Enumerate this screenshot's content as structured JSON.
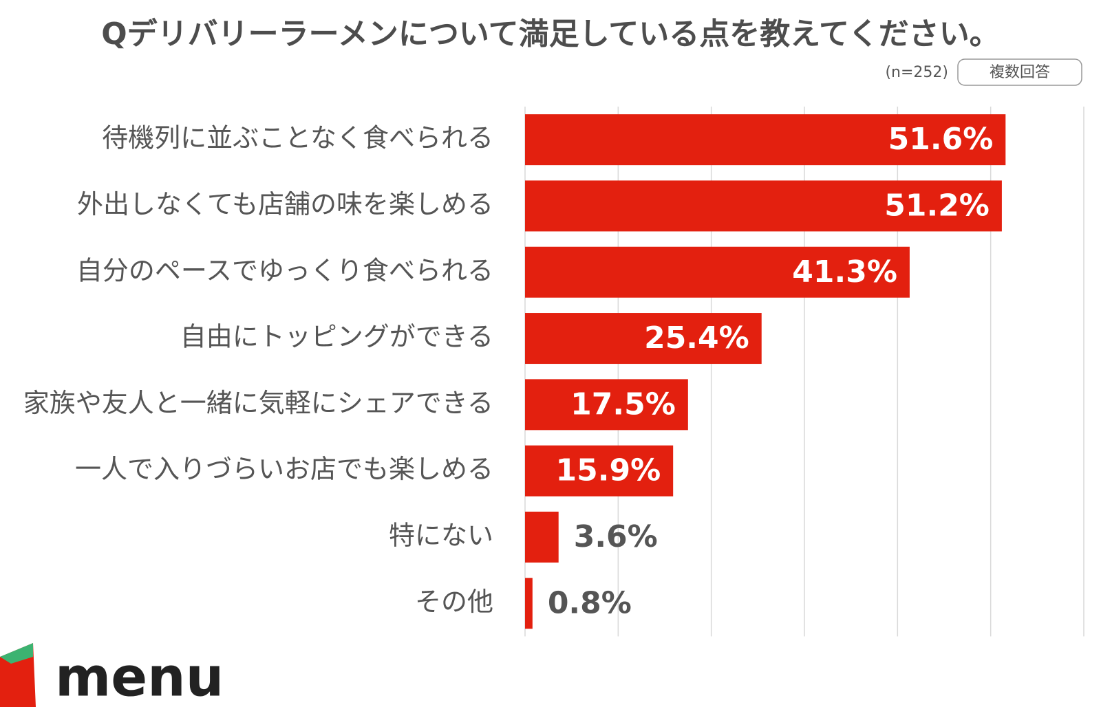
{
  "chart_data": {
    "type": "bar",
    "orientation": "horizontal",
    "title": "Qデリバリーラーメンについて満足している点を教えてください。",
    "sample_note": "(n=252)",
    "badge": "複数回答",
    "logo": "menu",
    "categories": [
      "待機列に並ぶことなく食べられる",
      "外出しなくても店舗の味を楽しめる",
      "自分のペースでゆっくり食べられる",
      "自由にトッピングができる",
      "家族や友人と一緒に気軽にシェアできる",
      "一人で入りづらいお店でも楽しめる",
      "特にない",
      "その他"
    ],
    "values": [
      51.6,
      51.2,
      41.3,
      25.4,
      17.5,
      15.9,
      3.6,
      0.8
    ],
    "value_labels": [
      "51.6%",
      "51.2%",
      "41.3%",
      "25.4%",
      "17.5%",
      "15.9%",
      "3.6%",
      "0.8%"
    ],
    "color": "#e3200f",
    "xlim": [
      0,
      60
    ],
    "xticks": [
      0,
      10,
      20,
      30,
      40,
      50,
      60
    ],
    "grid": true
  }
}
